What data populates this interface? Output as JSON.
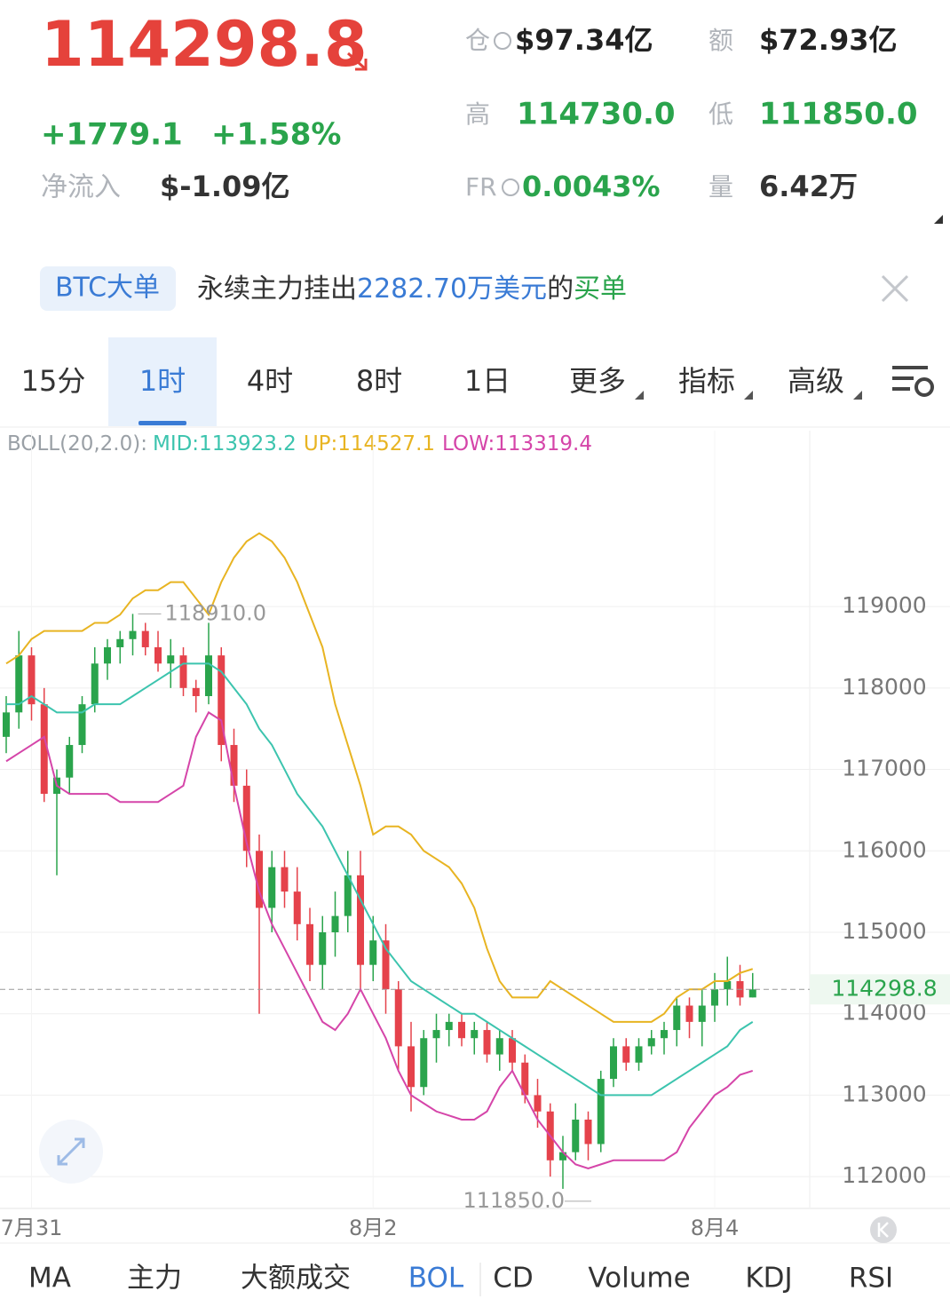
{
  "header": {
    "price": "114298.8",
    "change": "+1779.1",
    "change_pct": "+1.58%",
    "inflow_label": "净流入",
    "inflow_value": "$-1.09亿",
    "stats": [
      {
        "label": "仓",
        "value": "$97.34亿"
      },
      {
        "label": "额",
        "value": "$72.93亿"
      },
      {
        "label": "高",
        "value": "114730.0"
      },
      {
        "label": "低",
        "value": "111850.0"
      },
      {
        "label": "FR",
        "value": "0.0043%"
      },
      {
        "label": "量",
        "value": "6.42万"
      }
    ]
  },
  "notice": {
    "badge": "BTC大单",
    "parts": [
      "永续主力挂出",
      "2282.70万美元",
      "的",
      "买单"
    ]
  },
  "tabs": [
    "15分",
    "1时",
    "4时",
    "8时",
    "1日",
    "更多",
    "指标",
    "高级"
  ],
  "boll_legend": [
    "BOLL(20,2.0):",
    "MID:113923.2",
    "UP:114527.1",
    "LOW:113319.4"
  ],
  "chart_data": {
    "type": "candlestick",
    "categories": [
      null,
      null,
      "7月31",
      null,
      null,
      null,
      null,
      null,
      null,
      null,
      null,
      null,
      null,
      null,
      null,
      null,
      null,
      null,
      null,
      null,
      null,
      null,
      null,
      null,
      null,
      null,
      null,
      null,
      null,
      "8月2",
      null,
      null,
      null,
      null,
      null,
      null,
      null,
      null,
      null,
      null,
      null,
      null,
      null,
      null,
      null,
      null,
      null,
      null,
      null,
      null,
      null,
      null,
      null,
      null,
      null,
      null,
      "8月4",
      null,
      null,
      null
    ],
    "open": [
      117400,
      117700,
      118400,
      117800,
      116700,
      116900,
      117300,
      117800,
      118300,
      118500,
      118600,
      118700,
      118500,
      118300,
      118400,
      118000,
      117900,
      118400,
      117300,
      116800,
      116000,
      115300,
      115800,
      115500,
      115100,
      114600,
      115000,
      115200,
      115700,
      114600,
      114900,
      114300,
      113600,
      113100,
      113700,
      113800,
      113900,
      113700,
      113800,
      113500,
      113700,
      113400,
      113000,
      112800,
      112200,
      112300,
      112700,
      112400,
      113200,
      113600,
      113400,
      113600,
      113700,
      113800,
      114100,
      113900,
      114100,
      114300,
      114400,
      114200
    ],
    "high": [
      117900,
      118700,
      118500,
      118000,
      117000,
      117400,
      117900,
      118500,
      118600,
      118700,
      118910,
      118800,
      118700,
      118600,
      118500,
      118100,
      118800,
      118500,
      117500,
      117000,
      116200,
      116000,
      116000,
      115800,
      115300,
      115200,
      115500,
      116000,
      116000,
      115200,
      115100,
      114400,
      113900,
      113800,
      114000,
      114000,
      114000,
      113900,
      113900,
      113800,
      113800,
      113500,
      113200,
      112900,
      112500,
      112900,
      112800,
      113300,
      113700,
      113700,
      113700,
      113800,
      113900,
      114200,
      114200,
      114300,
      114500,
      114700,
      114600,
      114500
    ],
    "low": [
      117200,
      117500,
      117600,
      116600,
      115700,
      116700,
      117200,
      117700,
      118100,
      118300,
      118400,
      118400,
      118200,
      118000,
      117900,
      117700,
      117800,
      117100,
      116600,
      115800,
      114000,
      115000,
      115300,
      114900,
      114400,
      114300,
      114700,
      115000,
      114300,
      114400,
      114000,
      113300,
      112800,
      113000,
      113400,
      113600,
      113600,
      113500,
      113400,
      113300,
      113300,
      112900,
      112600,
      112000,
      111850,
      112200,
      112200,
      112300,
      113100,
      113300,
      113300,
      113500,
      113500,
      113600,
      113700,
      113600,
      113900,
      114100,
      114100,
      114200
    ],
    "close": [
      117700,
      118400,
      117800,
      116700,
      116900,
      117300,
      117800,
      118300,
      118500,
      118600,
      118700,
      118500,
      118300,
      118400,
      118000,
      117900,
      118400,
      117300,
      116800,
      116000,
      115300,
      115800,
      115500,
      115100,
      114600,
      115000,
      115200,
      115700,
      114600,
      114900,
      114300,
      113600,
      113100,
      113700,
      113800,
      113900,
      113700,
      113800,
      113500,
      113700,
      113400,
      113000,
      112800,
      112200,
      112300,
      112700,
      112400,
      113200,
      113600,
      113400,
      113600,
      113700,
      113800,
      114100,
      113900,
      114100,
      114300,
      114400,
      114200,
      114298.8
    ],
    "up_color": "#2aa44c",
    "down_color": "#e5424b",
    "series": [
      {
        "name": "UP",
        "color": "#e8b422",
        "values": [
          118300,
          118400,
          118600,
          118700,
          118700,
          118700,
          118700,
          118800,
          118800,
          118900,
          119100,
          119200,
          119200,
          119300,
          119300,
          119100,
          118900,
          119300,
          119600,
          119800,
          119900,
          119800,
          119600,
          119300,
          118900,
          118500,
          117800,
          117300,
          116800,
          116200,
          116300,
          116300,
          116200,
          116000,
          115900,
          115800,
          115600,
          115300,
          114800,
          114400,
          114200,
          114200,
          114200,
          114400,
          114300,
          114200,
          114100,
          114000,
          113900,
          113900,
          113900,
          113900,
          114000,
          114200,
          114300,
          114300,
          114400,
          114400,
          114500,
          114550
        ]
      },
      {
        "name": "MID",
        "color": "#3cc4ae",
        "values": [
          117800,
          117800,
          117900,
          117800,
          117700,
          117700,
          117700,
          117800,
          117800,
          117800,
          117900,
          118000,
          118100,
          118200,
          118300,
          118300,
          118300,
          118200,
          118000,
          117800,
          117500,
          117300,
          117000,
          116700,
          116500,
          116300,
          116000,
          115700,
          115400,
          115100,
          114800,
          114600,
          114400,
          114300,
          114200,
          114100,
          114000,
          114000,
          113900,
          113800,
          113700,
          113600,
          113500,
          113400,
          113300,
          113200,
          113100,
          113000,
          113000,
          113000,
          113000,
          113000,
          113100,
          113200,
          113300,
          113400,
          113500,
          113600,
          113800,
          113900
        ]
      },
      {
        "name": "LOW",
        "color": "#d545a9",
        "values": [
          117100,
          117200,
          117300,
          117400,
          116800,
          116700,
          116700,
          116700,
          116700,
          116600,
          116600,
          116600,
          116600,
          116700,
          116800,
          117400,
          117700,
          117600,
          116800,
          116100,
          115500,
          115100,
          114800,
          114500,
          114200,
          113900,
          113800,
          114000,
          114300,
          114000,
          113700,
          113300,
          113000,
          112900,
          112800,
          112750,
          112700,
          112700,
          112800,
          113100,
          113300,
          113000,
          112700,
          112500,
          112300,
          112150,
          112100,
          112150,
          112200,
          112200,
          112200,
          112200,
          112200,
          112300,
          112600,
          112800,
          113000,
          113100,
          113250,
          113300
        ]
      }
    ],
    "ylim": [
      111620,
      121160
    ],
    "yticks": [
      112000,
      113000,
      114000,
      115000,
      116000,
      117000,
      118000,
      119000
    ],
    "grid": true,
    "max_label": {
      "value": 118910,
      "label": "118910.0"
    },
    "min_label": {
      "value": 111850,
      "label": "111850.0"
    },
    "last_price": 114298.8
  },
  "bottom_tabs": [
    "MA",
    "主力",
    "大额成交",
    "BOL",
    "CD",
    "Volume",
    "KDJ",
    "RSI"
  ]
}
